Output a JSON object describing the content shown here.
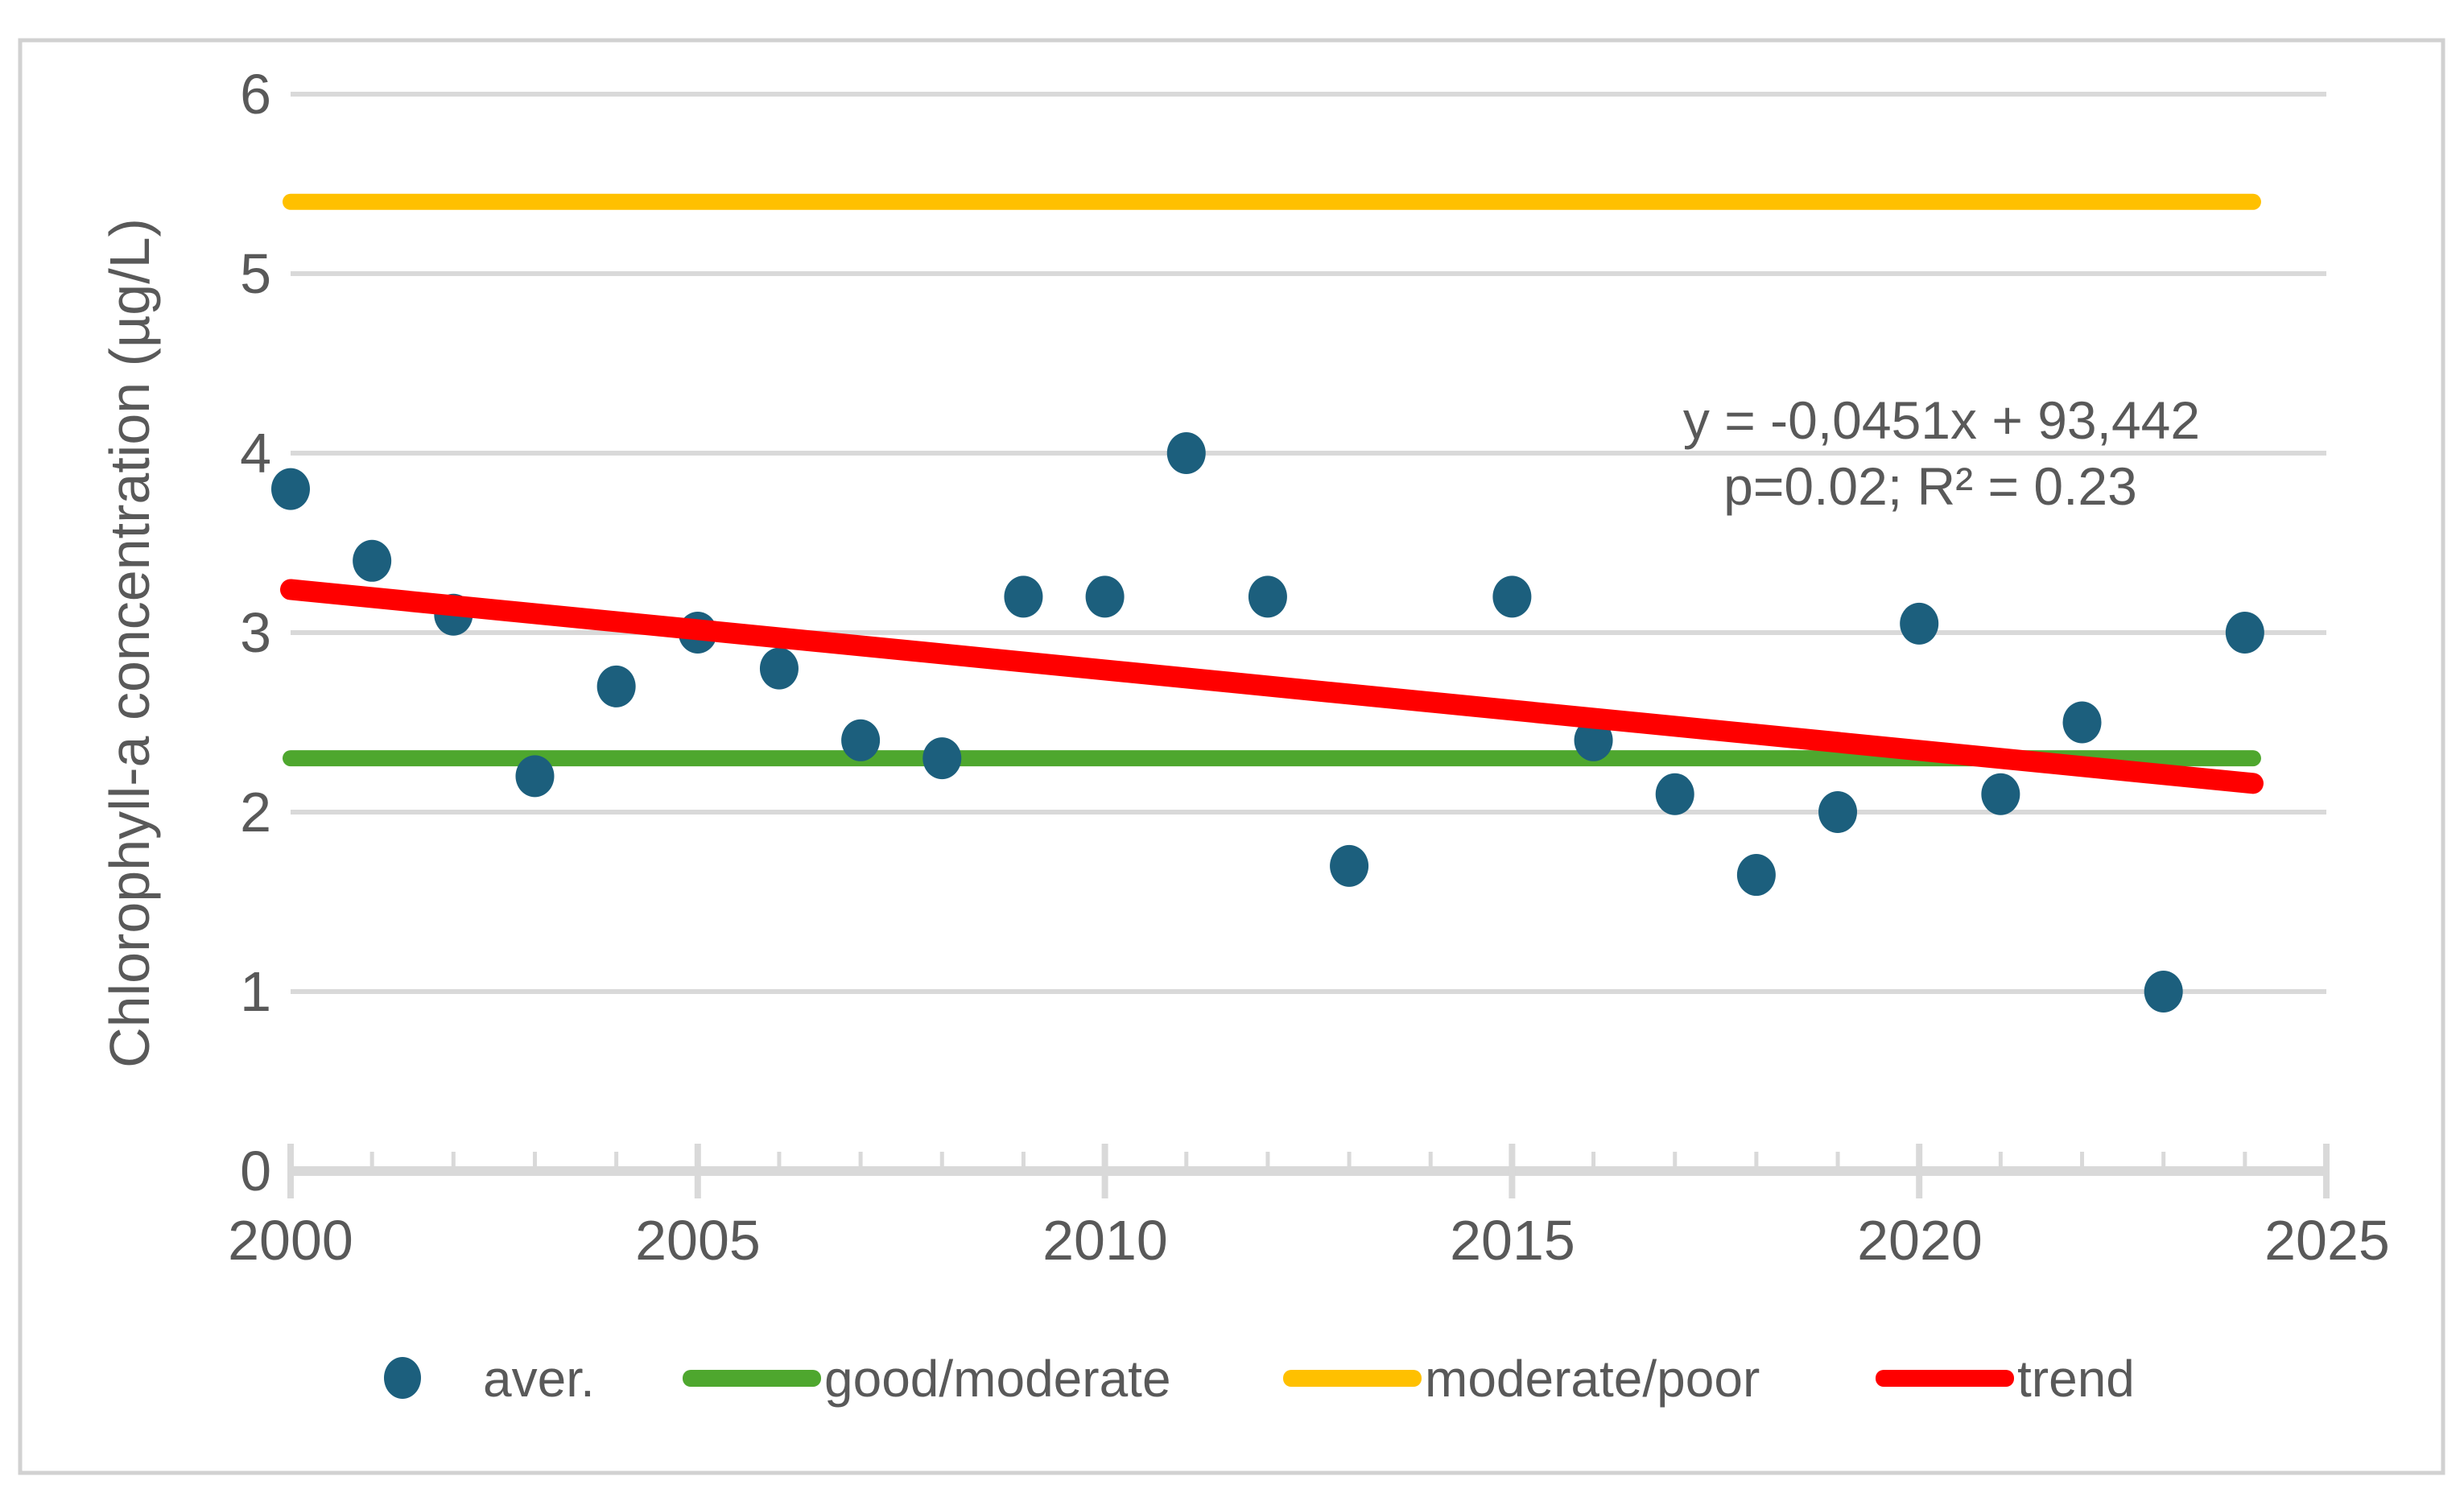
{
  "colors": {
    "background": "#FFFFFF",
    "frame": "#D1D1D1",
    "gridline": "#D9D9D9",
    "axis": "#D9D9D9",
    "text": "#595959"
  },
  "chart_data": {
    "type": "scatter",
    "title": "",
    "xlabel": "",
    "ylabel": "Chlorophyll-a concentration (µg/L)",
    "xlim": [
      2000,
      2025
    ],
    "ylim": [
      0,
      6
    ],
    "x_ticks": [
      "2000",
      "2005",
      "2010",
      "2015",
      "2020",
      "2025"
    ],
    "y_ticks": [
      "0",
      "1",
      "2",
      "3",
      "4",
      "5",
      "6"
    ],
    "grid": "horizontal-only",
    "legend_position": "bottom",
    "series": [
      {
        "name": "aver.",
        "type": "scatter",
        "color": "#1C5F7D",
        "x": [
          2000,
          2001,
          2002,
          2003,
          2004,
          2005,
          2006,
          2007,
          2008,
          2009,
          2010,
          2011,
          2012,
          2013,
          2015,
          2016,
          2017,
          2018,
          2019,
          2020,
          2021,
          2022,
          2023,
          2024
        ],
        "y": [
          3.8,
          3.4,
          3.1,
          2.2,
          2.7,
          3.0,
          2.8,
          2.4,
          2.3,
          3.2,
          3.2,
          4.0,
          3.2,
          1.7,
          3.2,
          2.4,
          2.1,
          1.65,
          2.0,
          3.05,
          2.1,
          2.5,
          1.0,
          3.0
        ]
      },
      {
        "name": "good/moderate",
        "type": "reference-line",
        "color": "#4EA72E",
        "value": 2.3,
        "x_span": [
          2000,
          2024.1
        ]
      },
      {
        "name": "moderate/poor",
        "type": "reference-line",
        "color": "#FFC000",
        "value": 5.4,
        "x_span": [
          2000,
          2024.1
        ]
      },
      {
        "name": "trend",
        "type": "trend-line",
        "color": "#FF0000",
        "x_span": [
          2000,
          2024.1
        ],
        "y_start": 3.24,
        "y_end": 2.16
      }
    ],
    "annotation": {
      "line1": "y = -0,0451x + 93,442",
      "line2": "p=0.02; R² = 0.23"
    }
  }
}
